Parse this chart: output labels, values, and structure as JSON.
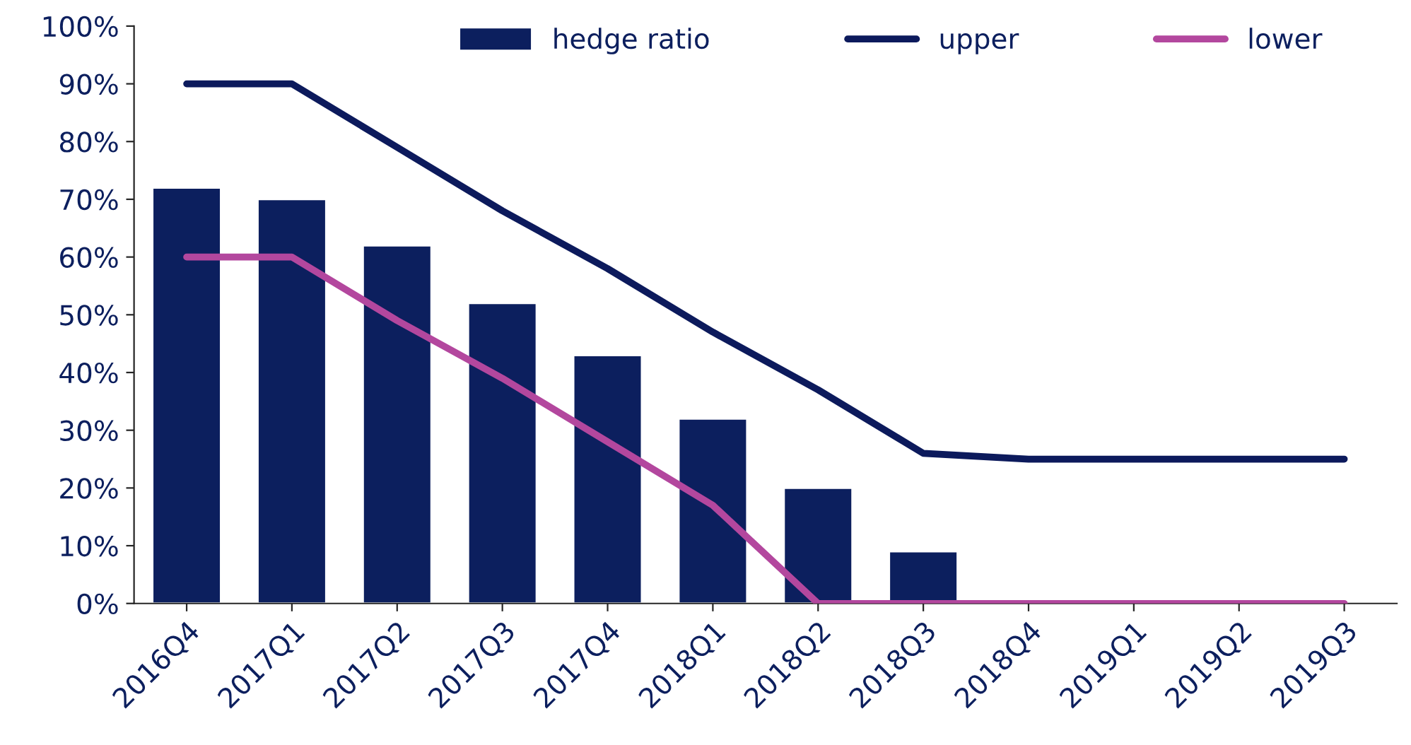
{
  "chart_data": {
    "type": "bar",
    "categories": [
      "2016Q4",
      "2017Q1",
      "2017Q2",
      "2017Q3",
      "2017Q4",
      "2018Q1",
      "2018Q2",
      "2018Q3",
      "2018Q4",
      "2019Q1",
      "2019Q2",
      "2019Q3"
    ],
    "series": [
      {
        "name": "hedge ratio",
        "color": "#0c1f5e",
        "values": [
          72,
          70,
          62,
          52,
          43,
          32,
          20,
          9,
          null,
          null,
          null,
          null
        ]
      },
      {
        "name": "upper",
        "type": "line",
        "color": "#0c1a5c",
        "values": [
          90,
          90,
          79,
          68,
          58,
          47,
          37,
          26,
          25,
          25,
          25,
          25
        ]
      },
      {
        "name": "lower",
        "type": "line",
        "color": "#b3479e",
        "values": [
          60,
          60,
          49,
          39,
          28,
          17,
          0,
          0,
          0,
          0,
          0,
          0
        ]
      }
    ],
    "ylim": [
      0,
      100
    ],
    "yticks": [
      {
        "value": 0,
        "label": "0%"
      },
      {
        "value": 10,
        "label": "10%"
      },
      {
        "value": 20,
        "label": "20%"
      },
      {
        "value": 30,
        "label": "30%"
      },
      {
        "value": 40,
        "label": "40%"
      },
      {
        "value": 50,
        "label": "50%"
      },
      {
        "value": 60,
        "label": "60%"
      },
      {
        "value": 70,
        "label": "70%"
      },
      {
        "value": 80,
        "label": "80%"
      },
      {
        "value": 90,
        "label": "90%"
      },
      {
        "value": 100,
        "label": "100%"
      }
    ],
    "grid": false,
    "legend": "top",
    "marker": "none",
    "line_style": "solid"
  }
}
